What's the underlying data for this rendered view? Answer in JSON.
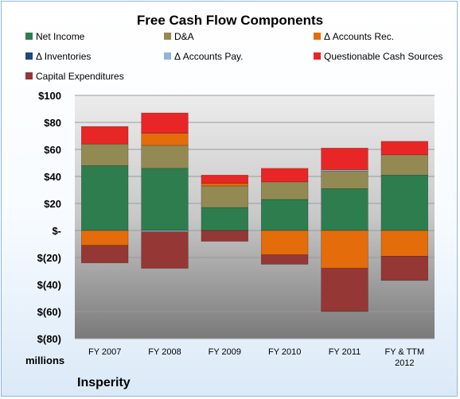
{
  "chart_data": {
    "type": "bar",
    "stacked": true,
    "title": "Free Cash Flow Components",
    "company": "Insperity",
    "unit_label": "millions",
    "categories": [
      "FY 2007",
      "FY 2008",
      "FY 2009",
      "FY 2010",
      "FY 2011",
      "FY & TTM 2012"
    ],
    "ylim": [
      -80,
      100
    ],
    "yticks": [
      "$(80)",
      "$(60)",
      "$(40)",
      "$(20)",
      "$-",
      "$20",
      "$40",
      "$60",
      "$80",
      "$100"
    ],
    "grid": true,
    "legend_position": "top",
    "series": [
      {
        "name": "Net Income",
        "color": "#2e7d4f",
        "values": [
          48,
          46,
          17,
          23,
          31,
          41
        ]
      },
      {
        "name": "D&A",
        "color": "#938953",
        "values": [
          16,
          17,
          16,
          13,
          13,
          15
        ]
      },
      {
        "name": "Δ Accounts Rec.",
        "color": "#e46c0a",
        "values": [
          -11,
          9,
          2,
          -18,
          -28,
          -19
        ]
      },
      {
        "name": "Δ Inventories",
        "color": "#1f497d",
        "values": [
          0,
          0,
          0,
          0,
          0,
          0
        ]
      },
      {
        "name": "Δ Accounts Pay.",
        "color": "#95b3d7",
        "values": [
          0,
          -1,
          0,
          0,
          1,
          0
        ]
      },
      {
        "name": "Questionable Cash Sources",
        "color": "#e82626",
        "values": [
          13,
          15,
          6,
          10,
          16,
          10
        ]
      },
      {
        "name": "Capital Expenditures",
        "color": "#953735",
        "values": [
          -13,
          -27,
          -8,
          -7,
          -32,
          -18
        ]
      }
    ]
  }
}
